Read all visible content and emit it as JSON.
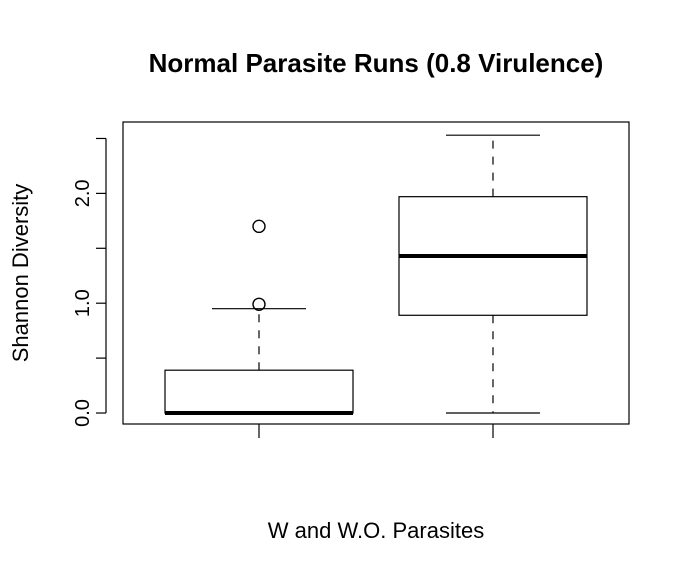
{
  "chart_data": {
    "type": "box",
    "title": "Normal Parasite Runs (0.8 Virulence)",
    "xlabel": "W and W.O. Parasites",
    "ylabel": "Shannon Diversity",
    "ylim": [
      -0.1,
      2.65
    ],
    "yticks": [
      0.0,
      0.5,
      1.0,
      1.5,
      2.0,
      2.5
    ],
    "ytick_labels": [
      "0.0",
      "",
      "1.0",
      "",
      "2.0",
      ""
    ],
    "categories": [
      "",
      ""
    ],
    "boxes": [
      {
        "whisker_low": 0.0,
        "q1": 0.0,
        "median": 0.0,
        "q3": 0.39,
        "whisker_high": 0.95,
        "outliers": [
          0.99,
          1.7
        ]
      },
      {
        "whisker_low": 0.0,
        "q1": 0.89,
        "median": 1.43,
        "q3": 1.97,
        "whisker_high": 2.53,
        "outliers": []
      }
    ],
    "grid": false,
    "legend": "none"
  }
}
